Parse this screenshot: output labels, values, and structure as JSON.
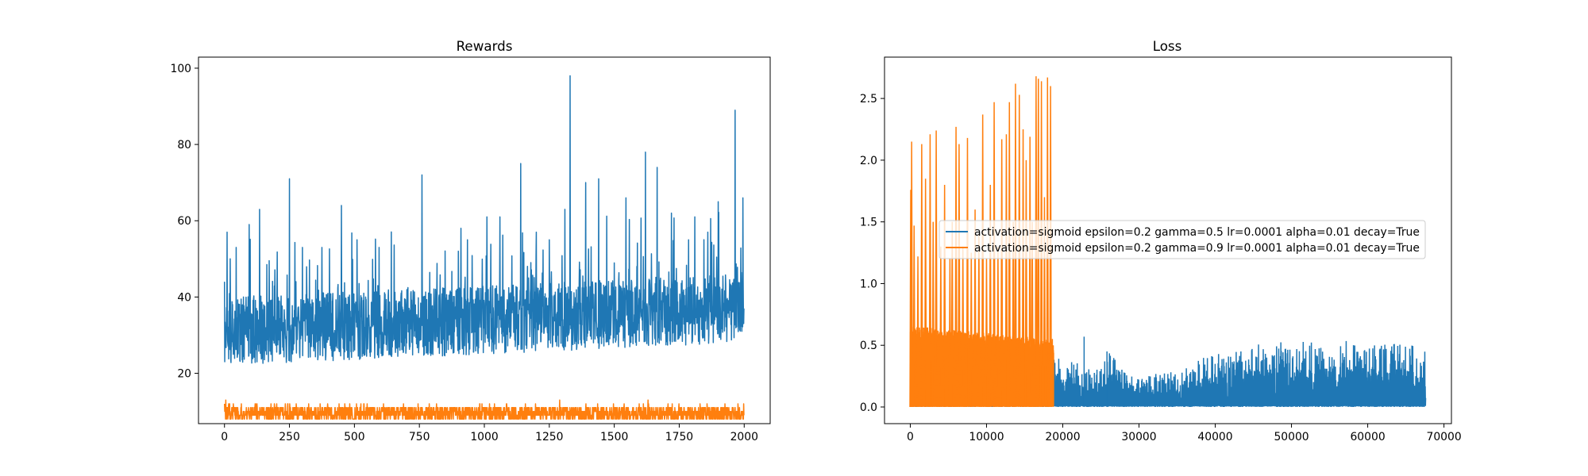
{
  "chart_data": [
    {
      "type": "line",
      "title": "Rewards",
      "xlabel": "",
      "ylabel": "",
      "xlim": [
        -100,
        2100
      ],
      "ylim": [
        6.8,
        102.9
      ],
      "xticks": [
        0,
        250,
        500,
        750,
        1000,
        1250,
        1500,
        1750,
        2000
      ],
      "xtick_labels": [
        "0",
        "250",
        "500",
        "750",
        "1000",
        "1250",
        "1500",
        "1750",
        "2000"
      ],
      "yticks": [
        20,
        40,
        60,
        80,
        100
      ],
      "ytick_labels": [
        "20",
        "40",
        "60",
        "80",
        "100"
      ],
      "grid": false,
      "series": [
        {
          "color": "#1f77b4",
          "n_points": 2000,
          "baseline_range": [
            22,
            40
          ],
          "typical_max": 60,
          "peaks": [
            [
              10,
              57
            ],
            [
              45,
              53
            ],
            [
              95,
              59
            ],
            [
              135,
              63
            ],
            [
              250,
              71
            ],
            [
              300,
              53
            ],
            [
              375,
              53
            ],
            [
              450,
              64
            ],
            [
              510,
              55
            ],
            [
              595,
              53
            ],
            [
              760,
              72
            ],
            [
              935,
              55
            ],
            [
              1010,
              61
            ],
            [
              1060,
              61
            ],
            [
              1140,
              75
            ],
            [
              1200,
              57
            ],
            [
              1250,
              55
            ],
            [
              1310,
              63
            ],
            [
              1330,
              98
            ],
            [
              1390,
              70
            ],
            [
              1440,
              71
            ],
            [
              1545,
              66
            ],
            [
              1620,
              78
            ],
            [
              1665,
              74
            ],
            [
              1720,
              62
            ],
            [
              1810,
              61
            ],
            [
              1860,
              57
            ],
            [
              1900,
              65
            ],
            [
              1965,
              89
            ],
            [
              1995,
              66
            ]
          ],
          "start_value": 44,
          "end_value": 37
        },
        {
          "color": "#ff7f0e",
          "n_points": 2000,
          "baseline_range": [
            8,
            11
          ],
          "peaks": [
            [
              5,
              13
            ],
            [
              1290,
              13
            ],
            [
              1630,
              13
            ]
          ],
          "start_value": 12,
          "end_value": 9
        }
      ]
    },
    {
      "type": "line",
      "title": "Loss",
      "xlabel": "",
      "ylabel": "",
      "xlim": [
        -3380,
        70980
      ],
      "ylim": [
        -0.135,
        2.835
      ],
      "xticks": [
        0,
        10000,
        20000,
        30000,
        40000,
        50000,
        60000,
        70000
      ],
      "xtick_labels": [
        "0",
        "10000",
        "20000",
        "30000",
        "40000",
        "50000",
        "60000",
        "70000"
      ],
      "yticks": [
        0.0,
        0.5,
        1.0,
        1.5,
        2.0,
        2.5
      ],
      "ytick_labels": [
        "0.0",
        "0.5",
        "1.0",
        "1.5",
        "2.0",
        "2.5"
      ],
      "grid": false,
      "legend_position": "center-right",
      "series": [
        {
          "name": "activation=sigmoid epsilon=0.2 gamma=0.5 lr=0.0001 alpha=0.01 decay=True",
          "color": "#1f77b4",
          "x_range": [
            0,
            67600
          ],
          "envelope": [
            [
              0,
              0.6
            ],
            [
              18700,
              0.45
            ],
            [
              19500,
              0.4
            ],
            [
              25000,
              0.3
            ],
            [
              25800,
              0.45
            ],
            [
              30000,
              0.25
            ],
            [
              35000,
              0.3
            ],
            [
              40000,
              0.45
            ],
            [
              45000,
              0.5
            ],
            [
              50000,
              0.55
            ],
            [
              55000,
              0.55
            ],
            [
              60000,
              0.52
            ],
            [
              67600,
              0.5
            ]
          ],
          "peaks": [
            [
              22800,
              0.57
            ],
            [
              25800,
              0.45
            ]
          ]
        },
        {
          "name": "activation=sigmoid epsilon=0.2 gamma=0.9 lr=0.0001 alpha=0.01 decay=True",
          "color": "#ff7f0e",
          "x_range": [
            0,
            18800
          ],
          "dense_envelope": [
            [
              0,
              0.66
            ],
            [
              5000,
              0.63
            ],
            [
              10000,
              0.6
            ],
            [
              15000,
              0.57
            ],
            [
              18800,
              0.55
            ]
          ],
          "peaks": [
            [
              60,
              1.76
            ],
            [
              180,
              2.15
            ],
            [
              500,
              1.47
            ],
            [
              1000,
              1.22
            ],
            [
              1500,
              2.13
            ],
            [
              2000,
              1.85
            ],
            [
              2600,
              2.21
            ],
            [
              3000,
              1.5
            ],
            [
              3400,
              2.24
            ],
            [
              4000,
              1.3
            ],
            [
              4500,
              1.8
            ],
            [
              5200,
              1.2
            ],
            [
              5500,
              1.5
            ],
            [
              6000,
              2.27
            ],
            [
              6400,
              2.13
            ],
            [
              6900,
              1.3
            ],
            [
              7500,
              2.18
            ],
            [
              8000,
              1.25
            ],
            [
              8500,
              1.6
            ],
            [
              9000,
              1.4
            ],
            [
              9500,
              2.37
            ],
            [
              10000,
              1.2
            ],
            [
              10500,
              1.8
            ],
            [
              11000,
              2.47
            ],
            [
              11500,
              1.3
            ],
            [
              12000,
              2.17
            ],
            [
              12600,
              2.21
            ],
            [
              13000,
              2.47
            ],
            [
              13500,
              1.5
            ],
            [
              13800,
              2.62
            ],
            [
              14300,
              2.53
            ],
            [
              14800,
              2.25
            ],
            [
              15200,
              2.0
            ],
            [
              15700,
              2.19
            ],
            [
              16000,
              1.5
            ],
            [
              16500,
              2.68
            ],
            [
              16800,
              2.66
            ],
            [
              17200,
              2.64
            ],
            [
              17600,
              1.7
            ],
            [
              18000,
              2.67
            ],
            [
              18400,
              2.6
            ]
          ]
        }
      ]
    }
  ]
}
